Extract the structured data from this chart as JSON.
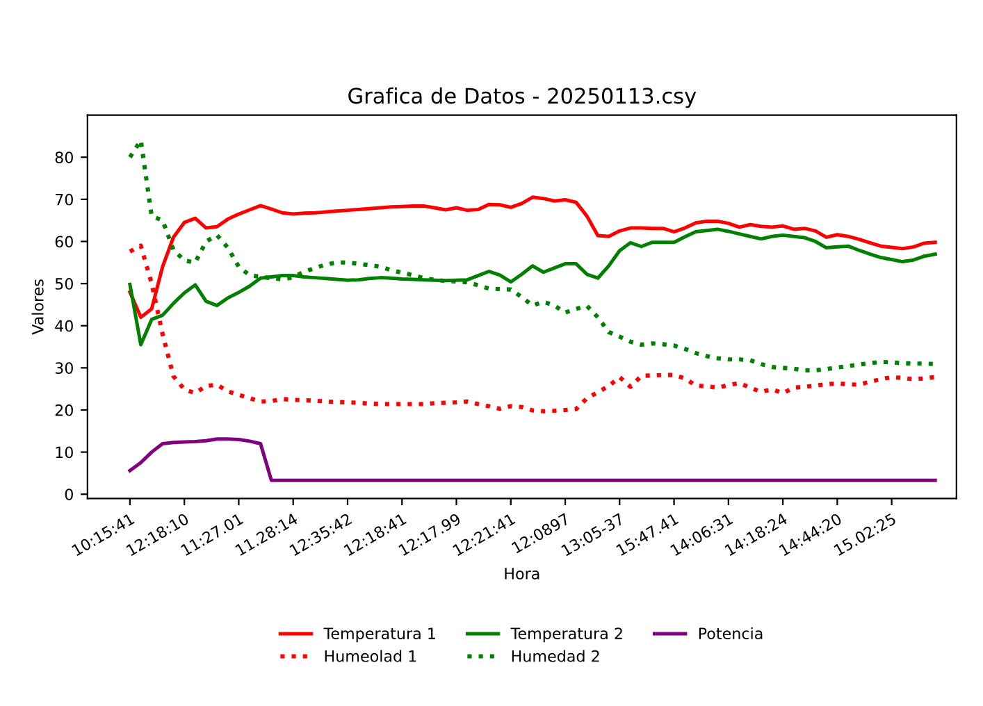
{
  "chart_data": {
    "type": "line",
    "title": "Grafica de Datos - 20250113.csy",
    "xlabel": "Hora",
    "ylabel": "Valores",
    "categories": [
      "10:15:41",
      null,
      null,
      null,
      null,
      "12:18:10",
      null,
      null,
      null,
      null,
      "11:27.01",
      null,
      null,
      null,
      null,
      "11.28:14",
      null,
      null,
      null,
      null,
      "12:35:42",
      null,
      null,
      null,
      null,
      "12:18:41",
      null,
      null,
      null,
      null,
      "12:17.99",
      null,
      null,
      null,
      null,
      "12:21:41",
      null,
      null,
      null,
      null,
      "12:0897",
      null,
      null,
      null,
      null,
      "13:05-37",
      null,
      null,
      null,
      null,
      "15:47.41",
      null,
      null,
      null,
      null,
      "14:06:31",
      null,
      null,
      null,
      null,
      "14:18:24",
      null,
      null,
      null,
      null,
      "14:44:20",
      null,
      null,
      null,
      null,
      "15.02:25",
      null,
      null,
      null,
      null
    ],
    "ylim": [
      -1,
      90
    ],
    "yticks": [
      0,
      10,
      20,
      30,
      40,
      50,
      60,
      70,
      80
    ],
    "grid": false,
    "legend": "bottom",
    "marker": "none",
    "series": [
      {
        "name": "Temperatura 1",
        "color": "#ff0000",
        "line_style": "solid",
        "values": [
          48,
          42,
          44,
          54,
          61,
          64.5,
          65.5,
          63.2,
          63.5,
          65.3,
          66.5,
          67.5,
          68.5,
          67.7,
          66.8,
          66.5,
          66.7,
          66.8,
          67,
          67.2,
          67.4,
          67.6,
          67.8,
          68,
          68.2,
          68.3,
          68.4,
          68.4,
          68,
          67.5,
          68,
          67.4,
          67.6,
          68.8,
          68.7,
          68.1,
          69,
          70.5,
          70.2,
          69.6,
          69.9,
          69.3,
          66,
          61.4,
          61.2,
          62.5,
          63.2,
          63.2,
          63.1,
          63.1,
          62.3,
          63.2,
          64.4,
          64.8,
          64.8,
          64.3,
          63.4,
          64,
          63.6,
          63.4,
          63.7,
          62.9,
          63.1,
          62.5,
          61,
          61.6,
          61.2,
          60.5,
          59.7,
          58.9,
          58.6,
          58.3,
          58.7,
          59.6,
          59.8
        ]
      },
      {
        "name": "Humeolad 1",
        "color": "#ff0000",
        "line_style": "dotted",
        "values": [
          57.6,
          59,
          50,
          38,
          28,
          24.9,
          24,
          25.7,
          26,
          24.4,
          23.6,
          22.8,
          22,
          22.1,
          22.6,
          22.4,
          22.3,
          22.2,
          22,
          21.9,
          21.8,
          21.7,
          21.5,
          21.4,
          21.4,
          21.4,
          21.4,
          21.4,
          21.6,
          21.7,
          21.8,
          22,
          21.4,
          20.9,
          20.3,
          20.9,
          20.7,
          19.9,
          19.7,
          19.8,
          20,
          20.2,
          22.8,
          24.2,
          25.7,
          27.8,
          25.5,
          28.1,
          28.2,
          28.3,
          28.3,
          27.5,
          25.8,
          25.6,
          25.3,
          25.9,
          26.4,
          25.3,
          24.3,
          24.9,
          24,
          25.3,
          25.5,
          25.8,
          26.1,
          26.3,
          26.1,
          26,
          26.7,
          27.3,
          27.8,
          27.6,
          27.3,
          27.5,
          27.8
        ]
      },
      {
        "name": "Temperatura 2",
        "color": "#008000",
        "line_style": "solid",
        "values": [
          49.8,
          35.5,
          41.5,
          42.5,
          45.3,
          47.8,
          49.7,
          45.8,
          44.8,
          46.6,
          47.9,
          49.4,
          51.3,
          51.6,
          51.9,
          51.9,
          51.6,
          51.4,
          51.2,
          51,
          50.8,
          50.9,
          51.2,
          51.4,
          51.3,
          51.1,
          51,
          50.9,
          50.8,
          50.7,
          50.8,
          50.9,
          51.9,
          52.9,
          52,
          50.4,
          52.2,
          54.2,
          52.7,
          53.7,
          54.7,
          54.7,
          52.2,
          51.3,
          54.2,
          57.8,
          59.7,
          58.8,
          59.8,
          59.8,
          59.8,
          61.1,
          62.3,
          62.6,
          62.9,
          62.4,
          61.8,
          61.2,
          60.6,
          61.2,
          61.5,
          61.2,
          60.9,
          60,
          58.5,
          58.7,
          58.9,
          57.9,
          57,
          56.2,
          55.7,
          55.2,
          55.6,
          56.5,
          57
        ]
      },
      {
        "name": "Humedad 2",
        "color": "#008000",
        "line_style": "dotted",
        "values": [
          80,
          84,
          66,
          65,
          58,
          55.5,
          55,
          60,
          61.5,
          58.5,
          54,
          52,
          51.6,
          51.3,
          51,
          51.5,
          52.8,
          53.7,
          54.5,
          55,
          55,
          54.7,
          54.4,
          54,
          53.2,
          52.6,
          52,
          51.3,
          50.9,
          50.6,
          50.5,
          50.3,
          49.6,
          48.8,
          48.7,
          48.6,
          46.8,
          44.8,
          45.7,
          44.8,
          43.1,
          44,
          44.7,
          42,
          38.5,
          37.4,
          36.2,
          35.5,
          35.8,
          35.6,
          35.3,
          34.5,
          33.5,
          32.8,
          32.3,
          32,
          32,
          31.8,
          30.9,
          30.2,
          30,
          29.8,
          29.4,
          29.4,
          29.7,
          30.1,
          30.4,
          30.8,
          31.1,
          31.4,
          31.3,
          31.1,
          31,
          31,
          30.9
        ]
      },
      {
        "name": "Potencia",
        "color": "#800080",
        "line_style": "solid",
        "values": [
          5.6,
          7.5,
          10,
          12,
          12.3,
          12.4,
          12.5,
          12.7,
          13.1,
          13.1,
          13,
          12.6,
          12,
          3.3,
          3.3,
          3.3,
          3.3,
          3.3,
          3.3,
          3.3,
          3.3,
          3.3,
          3.3,
          3.3,
          3.3,
          3.3,
          3.3,
          3.3,
          3.3,
          3.3,
          3.3,
          3.3,
          3.3,
          3.3,
          3.3,
          3.3,
          3.3,
          3.3,
          3.3,
          3.3,
          3.3,
          3.3,
          3.3,
          3.3,
          3.3,
          3.3,
          3.3,
          3.3,
          3.3,
          3.3,
          3.3,
          3.3,
          3.3,
          3.3,
          3.3,
          3.3,
          3.3,
          3.3,
          3.3,
          3.3,
          3.3,
          3.3,
          3.3,
          3.3,
          3.3,
          3.3,
          3.3,
          3.3,
          3.3,
          3.3,
          3.3,
          3.3,
          3.3,
          3.3,
          3.3
        ]
      }
    ]
  }
}
